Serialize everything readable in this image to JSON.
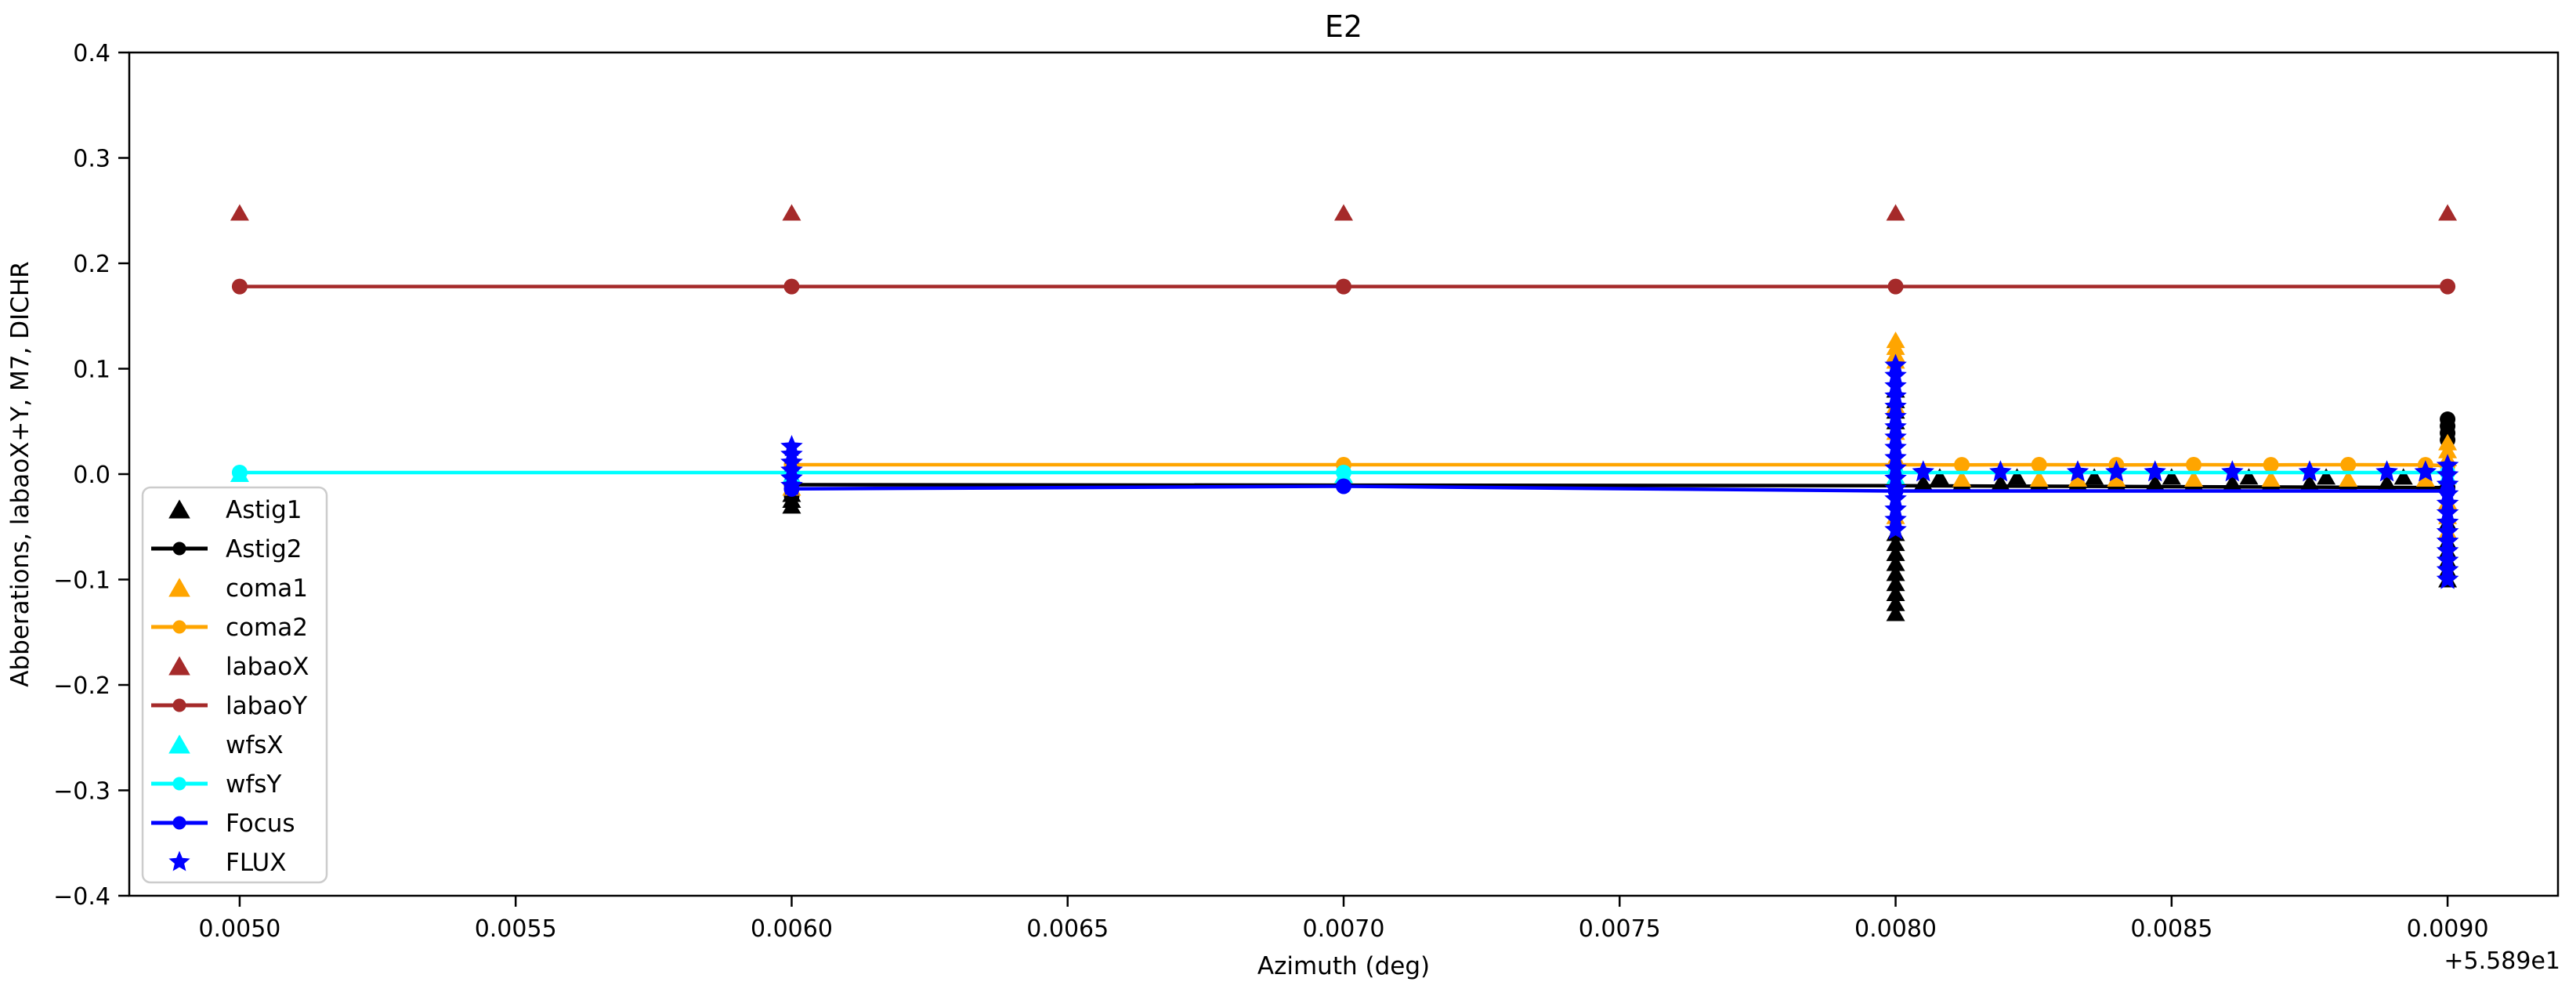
{
  "title": "E2",
  "axes": {
    "xlabel": "Azimuth (deg)",
    "ylabel": "Abberations, labaoX+Y, M7, DICHR",
    "x_offset_text": "+5.589e1"
  },
  "chart_data": {
    "type": "line",
    "title": "E2",
    "xlabel": "Azimuth (deg)",
    "ylabel": "Abberations, labaoX+Y, M7, DICHR",
    "x_offset_text": "+5.589e1",
    "xlim": [
      0.0048,
      0.0092
    ],
    "ylim": [
      -0.4,
      0.4
    ],
    "grid": false,
    "legend_position": "lower left",
    "x_ticks": [
      {
        "v": 0.005,
        "label": "0.0050"
      },
      {
        "v": 0.0055,
        "label": "0.0055"
      },
      {
        "v": 0.006,
        "label": "0.0060"
      },
      {
        "v": 0.0065,
        "label": "0.0065"
      },
      {
        "v": 0.007,
        "label": "0.0070"
      },
      {
        "v": 0.0075,
        "label": "0.0075"
      },
      {
        "v": 0.008,
        "label": "0.0080"
      },
      {
        "v": 0.0085,
        "label": "0.0085"
      },
      {
        "v": 0.009,
        "label": "0.0090"
      }
    ],
    "y_ticks": [
      {
        "v": -0.4,
        "label": "−0.4"
      },
      {
        "v": -0.3,
        "label": "−0.3"
      },
      {
        "v": -0.2,
        "label": "−0.2"
      },
      {
        "v": -0.1,
        "label": "−0.1"
      },
      {
        "v": 0.0,
        "label": "0.0"
      },
      {
        "v": 0.1,
        "label": "0.1"
      },
      {
        "v": 0.2,
        "label": "0.2"
      },
      {
        "v": 0.3,
        "label": "0.3"
      },
      {
        "v": 0.4,
        "label": "0.4"
      }
    ],
    "legend": [
      {
        "label": "Astig1",
        "marker": "triangle",
        "line": false,
        "color": "#000000"
      },
      {
        "label": "Astig2",
        "marker": "dot",
        "line": true,
        "color": "#000000"
      },
      {
        "label": "coma1",
        "marker": "triangle",
        "line": false,
        "color": "#FFA500"
      },
      {
        "label": "coma2",
        "marker": "dot",
        "line": true,
        "color": "#FFA500"
      },
      {
        "label": "labaoX",
        "marker": "triangle",
        "line": false,
        "color": "#A52A2A"
      },
      {
        "label": "labaoY",
        "marker": "dot",
        "line": true,
        "color": "#A52A2A"
      },
      {
        "label": "wfsX",
        "marker": "triangle",
        "line": false,
        "color": "#00FFFF"
      },
      {
        "label": "wfsY",
        "marker": "dot",
        "line": true,
        "color": "#00FFFF"
      },
      {
        "label": "Focus",
        "marker": "dot",
        "line": true,
        "color": "#0000FF"
      },
      {
        "label": "FLUX",
        "marker": "star",
        "line": false,
        "color": "#0000FF"
      }
    ],
    "series": [
      {
        "name": "Astig1",
        "color": "#000000",
        "marker": "triangle",
        "line": false,
        "points": [
          [
            0.006,
            -0.019
          ],
          [
            0.006,
            -0.0245
          ],
          [
            0.006,
            -0.03
          ],
          [
            0.008,
            0.08
          ],
          [
            0.008,
            0.07
          ],
          [
            0.008,
            0.06
          ],
          [
            0.008,
            0.05
          ],
          [
            0.008,
            -0.056
          ],
          [
            0.008,
            -0.0655
          ],
          [
            0.008,
            -0.075
          ],
          [
            0.008,
            -0.0845
          ],
          [
            0.008,
            -0.094
          ],
          [
            0.008,
            -0.1035
          ],
          [
            0.008,
            -0.113
          ],
          [
            0.008,
            -0.1225
          ],
          [
            0.008,
            -0.132
          ],
          [
            0.009,
            -0.046
          ],
          [
            0.009,
            -0.055
          ],
          [
            0.009,
            -0.064
          ],
          [
            0.009,
            -0.073
          ],
          [
            0.009,
            -0.082
          ],
          [
            0.009,
            -0.091
          ],
          [
            0.009,
            -0.1
          ],
          [
            0.00805,
            -0.008
          ],
          [
            0.00812,
            -0.008
          ],
          [
            0.00819,
            -0.008
          ],
          [
            0.00826,
            -0.008
          ],
          [
            0.00833,
            -0.008
          ],
          [
            0.0084,
            -0.008
          ],
          [
            0.00847,
            -0.008
          ],
          [
            0.00854,
            -0.008
          ],
          [
            0.00861,
            -0.008
          ],
          [
            0.00868,
            -0.008
          ],
          [
            0.00875,
            -0.008
          ],
          [
            0.00882,
            -0.008
          ],
          [
            0.00889,
            -0.008
          ],
          [
            0.00896,
            -0.008
          ],
          [
            0.00808,
            -0.0025
          ],
          [
            0.00822,
            -0.0025
          ],
          [
            0.00836,
            -0.0025
          ],
          [
            0.0085,
            -0.0025
          ],
          [
            0.00864,
            -0.0025
          ],
          [
            0.00878,
            -0.0025
          ],
          [
            0.00892,
            -0.0025
          ]
        ]
      },
      {
        "name": "Astig2",
        "color": "#000000",
        "marker": "dot",
        "line": true,
        "points": [
          [
            0.006,
            -0.01
          ],
          [
            0.007,
            -0.0105
          ],
          [
            0.008,
            -0.011
          ],
          [
            0.009,
            -0.0128
          ]
        ]
      },
      {
        "name": "Astig2-cluster",
        "color": "#000000",
        "marker": "dot",
        "line": false,
        "points": [
          [
            0.009,
            0.052
          ],
          [
            0.009,
            0.0455
          ],
          [
            0.009,
            0.039
          ],
          [
            0.009,
            0.0325
          ],
          [
            0.006,
            -0.0205
          ]
        ]
      },
      {
        "name": "coma1",
        "color": "#FFA500",
        "marker": "triangle",
        "line": false,
        "points": [
          [
            0.006,
            -0.013
          ],
          [
            0.008,
            0.127
          ],
          [
            0.008,
            0.1205
          ],
          [
            0.008,
            0.114
          ],
          [
            0.008,
            0.1075
          ],
          [
            0.008,
            0.065
          ],
          [
            0.008,
            0.04
          ],
          [
            0.008,
            -0.04
          ],
          [
            0.009,
            0.03
          ],
          [
            0.009,
            0.0225
          ],
          [
            0.009,
            0.015
          ],
          [
            0.009,
            -0.026
          ],
          [
            0.009,
            -0.04
          ],
          [
            0.009,
            -0.054
          ],
          [
            0.00812,
            -0.0045
          ],
          [
            0.00826,
            -0.0045
          ],
          [
            0.00833,
            -0.0045
          ],
          [
            0.0084,
            -0.0045
          ],
          [
            0.00854,
            -0.0045
          ],
          [
            0.00868,
            -0.0045
          ],
          [
            0.00882,
            -0.0045
          ],
          [
            0.00896,
            -0.0045
          ]
        ]
      },
      {
        "name": "coma2",
        "color": "#FFA500",
        "marker": "dot",
        "line": true,
        "points": [
          [
            0.006,
            0.0089
          ],
          [
            0.007,
            0.0089
          ],
          [
            0.008,
            0.0089
          ],
          [
            0.00812,
            0.0088
          ],
          [
            0.00826,
            0.0089
          ],
          [
            0.0084,
            0.0088
          ],
          [
            0.00854,
            0.0089
          ],
          [
            0.00868,
            0.0088
          ],
          [
            0.00882,
            0.0089
          ],
          [
            0.00896,
            0.0088
          ],
          [
            0.009,
            0.008
          ]
        ]
      },
      {
        "name": "labaoX",
        "color": "#A52A2A",
        "marker": "triangle",
        "line": false,
        "points": [
          [
            0.005,
            0.248
          ],
          [
            0.006,
            0.248
          ],
          [
            0.007,
            0.248
          ],
          [
            0.008,
            0.248
          ],
          [
            0.009,
            0.248
          ]
        ]
      },
      {
        "name": "labaoY",
        "color": "#A52A2A",
        "marker": "dot",
        "line": true,
        "points": [
          [
            0.005,
            0.178
          ],
          [
            0.006,
            0.178
          ],
          [
            0.007,
            0.178
          ],
          [
            0.008,
            0.178
          ],
          [
            0.009,
            0.178
          ]
        ]
      },
      {
        "name": "wfsX",
        "color": "#00FFFF",
        "marker": "triangle",
        "line": false,
        "points": [
          [
            0.005,
            0.0
          ],
          [
            0.006,
            -0.001
          ],
          [
            0.007,
            -0.001
          ],
          [
            0.008,
            -0.002
          ],
          [
            0.009,
            -0.002
          ]
        ]
      },
      {
        "name": "wfsY",
        "color": "#00FFFF",
        "marker": "dot",
        "line": true,
        "points": [
          [
            0.005,
            0.0015
          ],
          [
            0.006,
            0.0015
          ],
          [
            0.007,
            0.0015
          ],
          [
            0.008,
            0.0015
          ],
          [
            0.009,
            0.0015
          ]
        ]
      },
      {
        "name": "Focus",
        "color": "#0000FF",
        "marker": "dot",
        "line": true,
        "points": [
          [
            0.006,
            -0.014
          ],
          [
            0.007,
            -0.0115
          ],
          [
            0.008,
            -0.016
          ],
          [
            0.009,
            -0.016
          ]
        ]
      },
      {
        "name": "FLUX",
        "color": "#0000FF",
        "marker": "star",
        "line": false,
        "points": [
          [
            0.006,
            0.026
          ],
          [
            0.006,
            0.0185
          ],
          [
            0.006,
            0.011
          ],
          [
            0.006,
            0.0035
          ],
          [
            0.006,
            -0.004
          ],
          [
            0.006,
            -0.011
          ],
          [
            0.008,
            0.103
          ],
          [
            0.008,
            0.0933
          ],
          [
            0.008,
            0.0835
          ],
          [
            0.008,
            0.0738
          ],
          [
            0.008,
            0.064
          ],
          [
            0.008,
            0.0543
          ],
          [
            0.008,
            0.0445
          ],
          [
            0.008,
            0.0348
          ],
          [
            0.008,
            0.025
          ],
          [
            0.008,
            0.0153
          ],
          [
            0.008,
            0.0055
          ],
          [
            0.008,
            -0.0043
          ],
          [
            0.008,
            -0.014
          ],
          [
            0.008,
            -0.0238
          ],
          [
            0.008,
            -0.0335
          ],
          [
            0.008,
            -0.0433
          ],
          [
            0.008,
            -0.053
          ],
          [
            0.009,
            0.008
          ],
          [
            0.009,
            -0.001
          ],
          [
            0.009,
            -0.01
          ],
          [
            0.009,
            -0.019
          ],
          [
            0.009,
            -0.028
          ],
          [
            0.009,
            -0.037
          ],
          [
            0.009,
            -0.046
          ],
          [
            0.009,
            -0.055
          ],
          [
            0.009,
            -0.064
          ],
          [
            0.009,
            -0.073
          ],
          [
            0.009,
            -0.082
          ],
          [
            0.009,
            -0.091
          ],
          [
            0.009,
            -0.1
          ],
          [
            0.00805,
            0.002
          ],
          [
            0.00819,
            0.002
          ],
          [
            0.00833,
            0.002
          ],
          [
            0.0084,
            0.002
          ],
          [
            0.00847,
            0.002
          ],
          [
            0.00861,
            0.002
          ],
          [
            0.00875,
            0.002
          ],
          [
            0.00889,
            0.002
          ],
          [
            0.00896,
            0.002
          ]
        ]
      }
    ]
  }
}
